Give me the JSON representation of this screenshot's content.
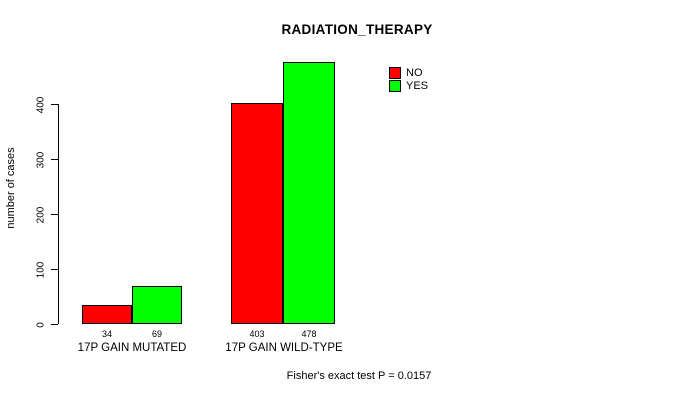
{
  "chart_data": {
    "type": "bar",
    "title": "RADIATION_THERAPY",
    "ylabel": "number of cases",
    "xlabel": "",
    "ylim": [
      0,
      490
    ],
    "yticks": [
      0,
      100,
      200,
      300,
      400
    ],
    "grid": false,
    "legend_position": "top-right",
    "categories": [
      "17P GAIN MUTATED",
      "17P GAIN WILD-TYPE"
    ],
    "series": [
      {
        "name": "NO",
        "color": "#ff0000",
        "values": [
          34,
          403
        ]
      },
      {
        "name": "YES",
        "color": "#00ff00",
        "values": [
          69,
          478
        ]
      }
    ],
    "bar_value_labels_shown": true,
    "annotation": "Fisher's exact test P = 0.0157"
  }
}
